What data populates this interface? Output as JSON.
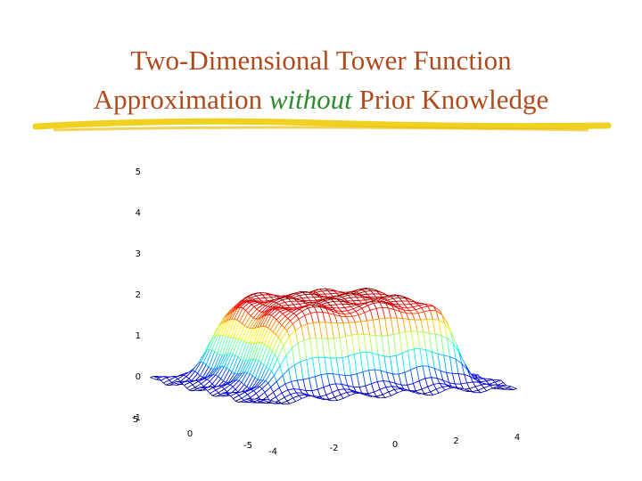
{
  "title": {
    "line1": "Two-Dimensional Tower Function",
    "line2_before": "Approximation",
    "emphasis": "without",
    "line2_after": "Prior Knowledge"
  },
  "figure": {
    "z_ticks": [
      "5",
      "4",
      "3",
      "2",
      "1",
      "0",
      "-1"
    ],
    "y_ticks": [
      "5",
      "0",
      "-5"
    ],
    "x_ticks": [
      "-4",
      "-2",
      "0",
      "2",
      "4"
    ]
  }
}
